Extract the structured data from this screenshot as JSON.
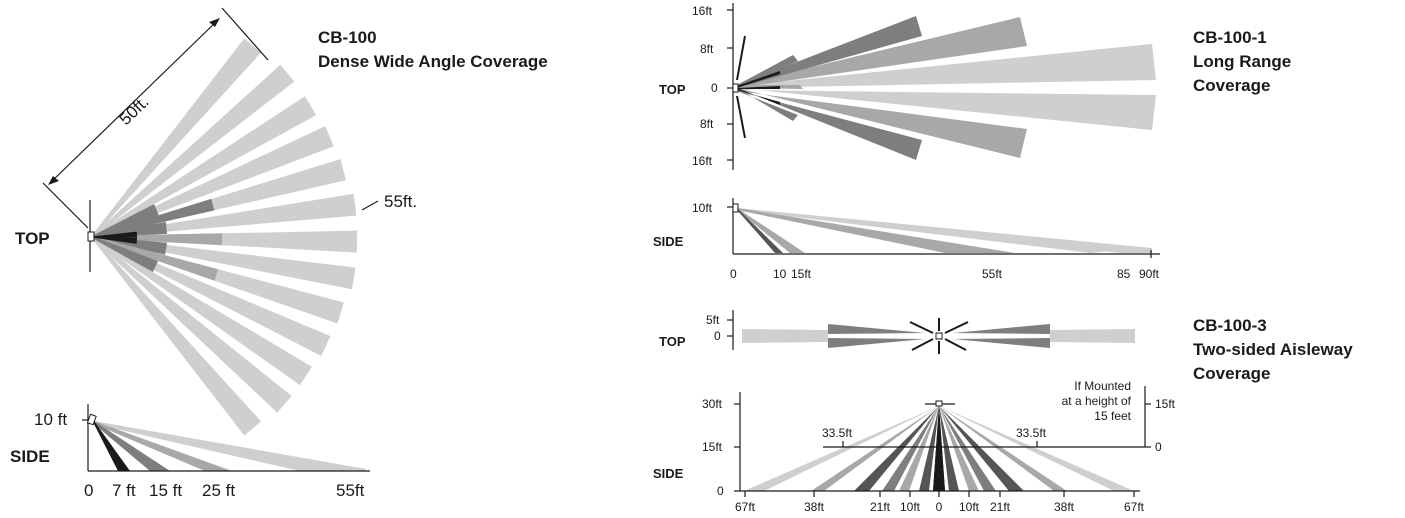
{
  "colors": {
    "light": "#cfcfcf",
    "mid": "#a8a8a8",
    "dark": "#7e7e7e",
    "darker": "#555555",
    "black": "#1a1a1a"
  },
  "cb100": {
    "title_line1": "CB-100",
    "title_line2": "Dense Wide Angle Coverage",
    "top_label": "TOP",
    "side_label": "SIDE",
    "dim_50": "50ft.",
    "dim_55": "55ft.",
    "side_height": "10 ft",
    "side_x_ticks": [
      "0",
      "7 ft",
      "15 ft",
      "25 ft",
      "55ft"
    ]
  },
  "cb1001": {
    "title_line1": "CB-100-1",
    "title_line2": "Long Range",
    "title_line3": "Coverage",
    "top_label": "TOP",
    "side_label": "SIDE",
    "top_y_ticks": [
      "16ft",
      "8ft",
      "0",
      "8ft",
      "16ft"
    ],
    "side_height": "10ft",
    "side_x_ticks": [
      "0",
      "10",
      "15ft",
      "55ft",
      "85",
      "90ft"
    ]
  },
  "cb1003": {
    "title_line1": "CB-100-3",
    "title_line2": "Two-sided Aisleway",
    "title_line3": "Coverage",
    "top_label": "TOP",
    "side_label": "SIDE",
    "top_y_ticks": [
      "5ft",
      "0"
    ],
    "side_y_ticks": [
      "30ft",
      "15ft",
      "0"
    ],
    "side_x_ticks": [
      "67ft",
      "38ft",
      "21ft",
      "10ft",
      "0",
      "10ft",
      "21ft",
      "38ft",
      "67ft"
    ],
    "dim_left": "33.5ft",
    "dim_right": "33.5ft",
    "mounted_note_line1": "If Mounted",
    "mounted_note_line2": "at a height of",
    "mounted_note_line3": "15 feet",
    "right_y_ticks": [
      "15ft",
      "0"
    ]
  }
}
